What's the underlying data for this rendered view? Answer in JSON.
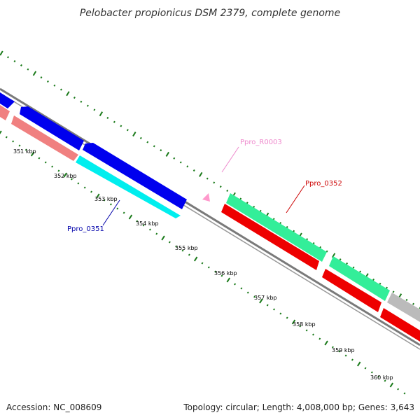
{
  "title": "Pelobacter propionicus DSM 2379, complete genome",
  "footer": {
    "accession": "Accession: NC_008609",
    "summary": "Topology: circular; Length: 4,008,000 bp; Genes: 3,643"
  },
  "colors": {
    "backbone": "#7a7a7a",
    "tick": "#1a7a1a",
    "cds_blue": "#0000ee",
    "cds_salmon": "#f08080",
    "cds_cyan": "#00eeee",
    "cds_green": "#33ee99",
    "cds_red": "#ee0000",
    "cds_gray": "#bbbbbb",
    "rna_pink": "#ff99cc"
  },
  "scale": {
    "unit": "kbp",
    "tick_labels": [
      "351 kbp",
      "352 kbp",
      "353 kbp",
      "354 kbp",
      "355 kbp",
      "356 kbp",
      "357 kbp",
      "358 kbp",
      "359 kbp",
      "360 kbp"
    ]
  },
  "gene_labels": [
    {
      "text": "Ppro_R0003",
      "color": "#ee88cc"
    },
    {
      "text": "Ppro_0352",
      "color": "#cc0000"
    },
    {
      "text": "Ppro_0351",
      "color": "#0000aa"
    }
  ]
}
